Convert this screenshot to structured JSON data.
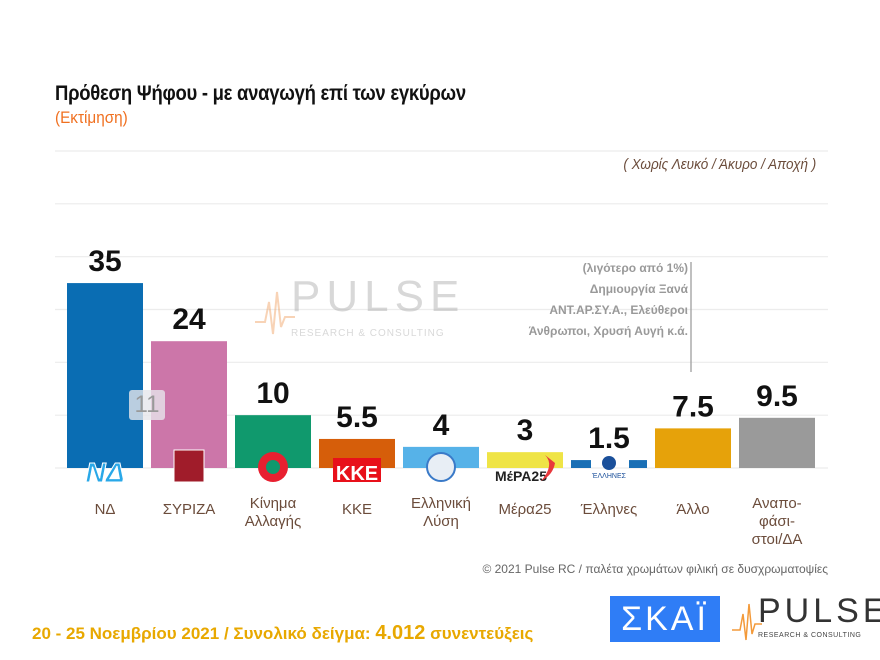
{
  "header": {
    "title": "Πρόθεση Ψήφου - με αναγωγή επί των εγκύρων",
    "subtitle": "(Εκτίμηση)",
    "note": "( Χωρίς Λευκό / Άκυρο / Αποχή )"
  },
  "annotation": {
    "lines": [
      "(λιγότερο από 1%)",
      "Δημιουργία Ξανά",
      "ΑΝΤ.ΑΡ.ΣΥ.Α., Ελεύθεροι",
      "Άνθρωποι, Χρυσή Αυγή   κ.ά."
    ]
  },
  "inner_label": "11",
  "chart_data": {
    "type": "bar",
    "title": "Πρόθεση Ψήφου - με αναγωγή επί των εγκύρων",
    "subtitle": "(Εκτίμηση)",
    "categories": [
      "ΝΔ",
      "ΣΥΡΙΖΑ",
      "Κίνημα Αλλαγής",
      "ΚΚΕ",
      "Ελληνική Λύση",
      "Μέρα25",
      "Έλληνες",
      "Άλλο",
      "Αναπο-φάσι-στοι/ΔΑ"
    ],
    "category_lines": [
      [
        "ΝΔ"
      ],
      [
        "ΣΥΡΙΖΑ"
      ],
      [
        "Κίνημα",
        "Αλλαγής"
      ],
      [
        "ΚΚΕ"
      ],
      [
        "Ελληνική",
        "Λύση"
      ],
      [
        "Μέρα25"
      ],
      [
        "Έλληνες"
      ],
      [
        "Άλλο"
      ],
      [
        "Αναπο-",
        "φάσι-",
        "στοι/ΔΑ"
      ]
    ],
    "values": [
      35,
      24,
      10,
      5.5,
      4,
      3,
      1.5,
      7.5,
      9.5
    ],
    "value_labels": [
      "35",
      "24",
      "10",
      "5.5",
      "4",
      "3",
      "1.5",
      "7.5",
      "9.5"
    ],
    "colors": [
      "#0a6db3",
      "#cc76a9",
      "#10996d",
      "#d65e0a",
      "#56b2e8",
      "#efe446",
      "#1a6fb5",
      "#e6a20a",
      "#9a9a9a"
    ],
    "ylim": [
      0,
      60
    ],
    "grid": true,
    "legend": "none",
    "xlabel": "",
    "ylabel": ""
  },
  "footer": {
    "copyright": "© 2021 Pulse RC  /  παλέτα χρωμάτων φιλική σε δυσχρωματοψίες",
    "dates": "20 - 25  Νοεμβρίου 2021  /  Συνολικό δείγμα: ",
    "sample": "4.012",
    "interviews": " συνεντεύξεις"
  },
  "logos": {
    "skai": "ΣΚΑΪ",
    "pulse": "PULSE",
    "pulse_tagline": "RESEARCH & CONSULTING"
  }
}
